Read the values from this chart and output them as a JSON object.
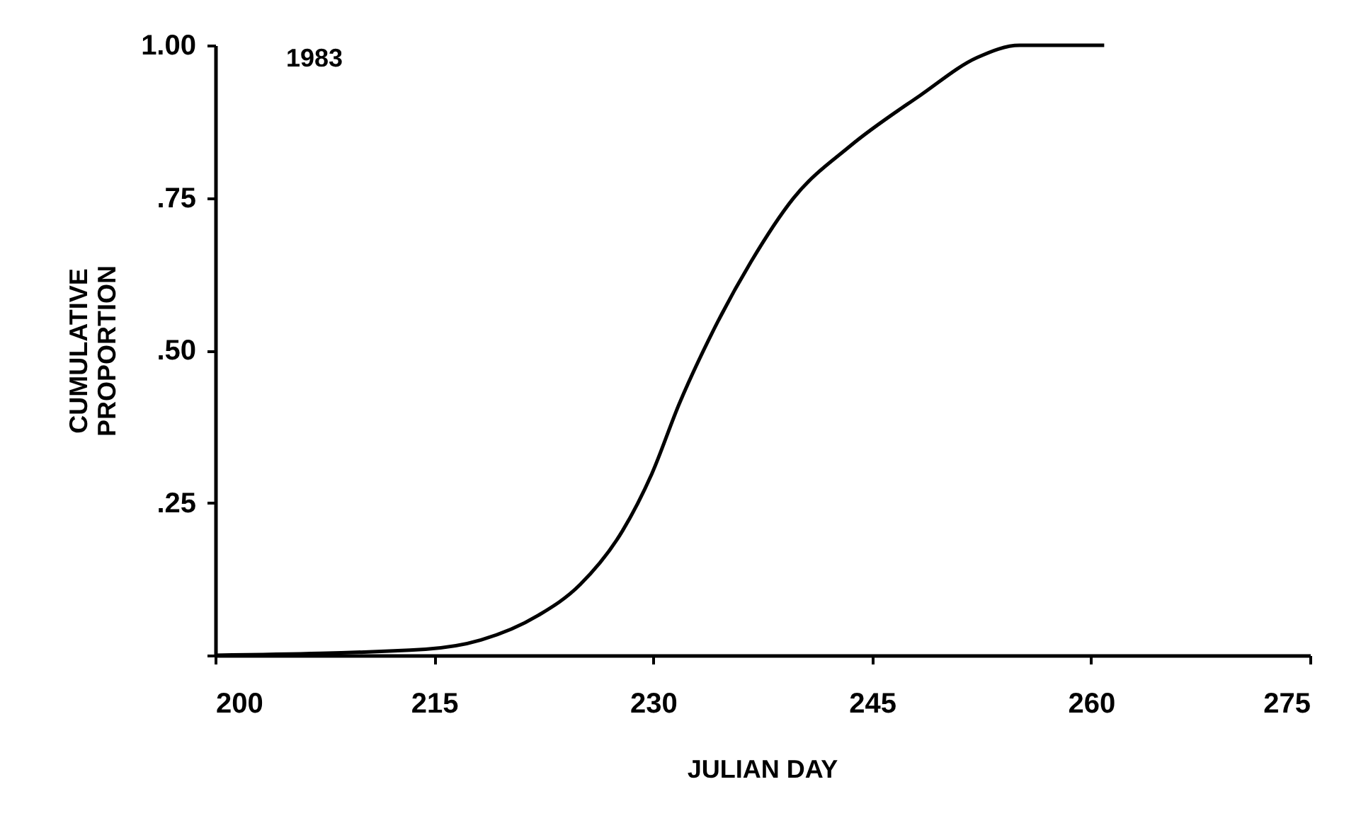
{
  "chart_data": {
    "type": "line",
    "xlabel": "JULIAN DAY",
    "ylabel": "CUMULATIVE PROPORTION",
    "annotations": [
      "1983"
    ],
    "x": [
      200,
      214.4,
      218.2,
      222.1,
      225,
      227.9,
      229.9,
      231.8,
      233.8,
      236.7,
      239.6,
      243.5,
      248.3,
      252.2,
      255.1,
      260.9
    ],
    "series": [
      {
        "color": "#000000",
        "values": [
          0,
          0.01,
          0.025,
          0.065,
          0.116,
          0.204,
          0.297,
          0.413,
          0.517,
          0.645,
          0.749,
          0.835,
          0.918,
          0.98,
          1.0,
          1.0
        ]
      }
    ],
    "xlim": [
      200,
      275
    ],
    "xticks": [
      200,
      215,
      230,
      245,
      260,
      275
    ],
    "ylim": [
      0,
      1
    ],
    "yticks": [
      {
        "value": 0,
        "label": null
      },
      {
        "value": 0.25,
        "label": ".25"
      },
      {
        "value": 0.5,
        "label": ".50"
      },
      {
        "value": 0.75,
        "label": ".75"
      },
      {
        "value": 1,
        "label": "1.00"
      }
    ],
    "grid": false,
    "marker": "none",
    "line_style": "solid"
  }
}
